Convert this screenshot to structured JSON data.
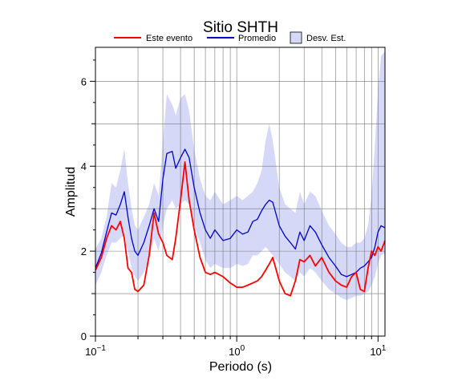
{
  "chart_data": {
    "type": "line",
    "title": "Sitio SHTH",
    "xlabel": "Periodo (s)",
    "ylabel": "Amplitud",
    "xscale": "log",
    "xlim": [
      0.1,
      11.2
    ],
    "ylim": [
      0,
      6.8
    ],
    "grid": true,
    "legend_position": "top",
    "x_ticks": [
      {
        "value": 0.1,
        "base": "10",
        "exp": "−1"
      },
      {
        "value": 1,
        "base": "10",
        "exp": "0"
      },
      {
        "value": 10,
        "base": "10",
        "exp": "1"
      }
    ],
    "y_ticks": [
      0,
      2,
      4,
      6
    ],
    "series": [
      {
        "name": "Este evento",
        "color": "#ff0000",
        "x": [
          0.1,
          0.11,
          0.12,
          0.13,
          0.14,
          0.15,
          0.16,
          0.17,
          0.18,
          0.19,
          0.2,
          0.22,
          0.24,
          0.26,
          0.28,
          0.3,
          0.32,
          0.35,
          0.37,
          0.4,
          0.43,
          0.46,
          0.5,
          0.55,
          0.6,
          0.65,
          0.7,
          0.8,
          0.9,
          1.0,
          1.1,
          1.2,
          1.3,
          1.4,
          1.5,
          1.6,
          1.7,
          1.8,
          2.0,
          2.2,
          2.4,
          2.6,
          2.8,
          3.0,
          3.3,
          3.6,
          4.0,
          4.5,
          5.0,
          5.5,
          6.0,
          6.5,
          7.0,
          7.5,
          8.0,
          8.5,
          9.0,
          9.5,
          10.0,
          10.5,
          11.2
        ],
        "values": [
          1.55,
          1.85,
          2.3,
          2.6,
          2.5,
          2.7,
          2.3,
          1.6,
          1.5,
          1.1,
          1.05,
          1.2,
          1.9,
          2.9,
          2.4,
          2.2,
          1.9,
          1.8,
          2.3,
          3.2,
          4.1,
          3.2,
          2.5,
          1.85,
          1.5,
          1.45,
          1.5,
          1.4,
          1.25,
          1.15,
          1.15,
          1.2,
          1.25,
          1.3,
          1.4,
          1.55,
          1.7,
          1.85,
          1.3,
          1.0,
          0.95,
          1.3,
          1.8,
          1.75,
          1.9,
          1.65,
          1.85,
          1.5,
          1.3,
          1.2,
          1.15,
          1.4,
          1.5,
          1.1,
          1.05,
          1.6,
          2.0,
          1.9,
          2.1,
          2.0,
          2.25
        ]
      },
      {
        "name": "Promedio",
        "color": "#0000cc",
        "x": [
          0.1,
          0.11,
          0.12,
          0.13,
          0.14,
          0.15,
          0.16,
          0.17,
          0.18,
          0.19,
          0.2,
          0.22,
          0.24,
          0.26,
          0.28,
          0.3,
          0.32,
          0.35,
          0.37,
          0.4,
          0.43,
          0.46,
          0.5,
          0.55,
          0.6,
          0.65,
          0.7,
          0.8,
          0.9,
          1.0,
          1.1,
          1.2,
          1.3,
          1.4,
          1.5,
          1.6,
          1.7,
          1.8,
          2.0,
          2.2,
          2.4,
          2.6,
          2.8,
          3.0,
          3.3,
          3.6,
          4.0,
          4.5,
          5.0,
          5.5,
          6.0,
          6.5,
          7.0,
          7.5,
          8.0,
          8.5,
          9.0,
          9.5,
          10.0,
          10.5,
          11.2
        ],
        "values": [
          1.6,
          1.95,
          2.45,
          2.9,
          2.85,
          3.1,
          3.4,
          2.8,
          2.3,
          2.0,
          1.9,
          2.2,
          2.6,
          3.0,
          2.7,
          3.7,
          4.3,
          4.35,
          3.95,
          4.2,
          4.4,
          4.2,
          3.5,
          2.9,
          2.5,
          2.3,
          2.5,
          2.25,
          2.3,
          2.5,
          2.4,
          2.45,
          2.7,
          2.75,
          2.95,
          3.1,
          3.2,
          3.15,
          2.6,
          2.35,
          2.2,
          2.05,
          2.45,
          2.25,
          2.6,
          2.45,
          2.15,
          1.85,
          1.65,
          1.45,
          1.4,
          1.45,
          1.5,
          1.6,
          1.65,
          1.75,
          1.85,
          2.1,
          2.45,
          2.6,
          2.55
        ]
      },
      {
        "name": "Desv. Est.",
        "color": "#d5d8f7",
        "x": [
          0.1,
          0.11,
          0.12,
          0.13,
          0.14,
          0.15,
          0.16,
          0.17,
          0.18,
          0.19,
          0.2,
          0.22,
          0.24,
          0.26,
          0.28,
          0.3,
          0.32,
          0.35,
          0.37,
          0.4,
          0.43,
          0.46,
          0.5,
          0.55,
          0.6,
          0.65,
          0.7,
          0.8,
          0.9,
          1.0,
          1.1,
          1.2,
          1.3,
          1.4,
          1.5,
          1.6,
          1.7,
          1.8,
          2.0,
          2.2,
          2.4,
          2.6,
          2.8,
          3.0,
          3.3,
          3.6,
          4.0,
          4.5,
          5.0,
          5.5,
          6.0,
          6.5,
          7.0,
          7.5,
          8.0,
          8.5,
          9.0,
          9.5,
          10.0,
          10.5,
          11.2
        ],
        "upper": [
          2.05,
          2.3,
          2.8,
          3.6,
          3.5,
          3.9,
          4.4,
          3.6,
          3.0,
          2.6,
          2.5,
          2.8,
          3.1,
          3.6,
          3.3,
          4.6,
          5.7,
          5.45,
          5.2,
          5.6,
          5.7,
          5.3,
          4.4,
          3.7,
          3.3,
          3.2,
          3.4,
          3.1,
          3.2,
          3.3,
          3.2,
          3.3,
          3.4,
          3.6,
          3.9,
          4.6,
          5.0,
          4.6,
          3.5,
          3.1,
          3.0,
          2.9,
          3.4,
          3.1,
          3.4,
          3.3,
          2.95,
          2.6,
          2.4,
          2.2,
          2.1,
          2.1,
          2.2,
          2.2,
          2.3,
          2.6,
          3.3,
          4.5,
          5.8,
          6.6,
          6.7
        ],
        "lower": [
          1.2,
          1.5,
          1.9,
          2.2,
          2.2,
          2.3,
          2.4,
          2.0,
          1.6,
          1.4,
          1.3,
          1.5,
          1.8,
          2.3,
          2.0,
          2.6,
          3.0,
          3.2,
          3.0,
          3.1,
          3.2,
          3.1,
          2.6,
          2.2,
          1.8,
          1.6,
          1.7,
          1.6,
          1.6,
          1.7,
          1.65,
          1.7,
          1.9,
          1.9,
          2.0,
          2.1,
          2.0,
          1.9,
          1.7,
          1.5,
          1.4,
          1.3,
          1.5,
          1.4,
          1.6,
          1.5,
          1.3,
          1.1,
          1.0,
          0.9,
          0.85,
          0.9,
          0.95,
          0.95,
          1.0,
          1.05,
          1.2,
          1.4,
          1.7,
          1.9,
          1.95
        ]
      }
    ]
  }
}
